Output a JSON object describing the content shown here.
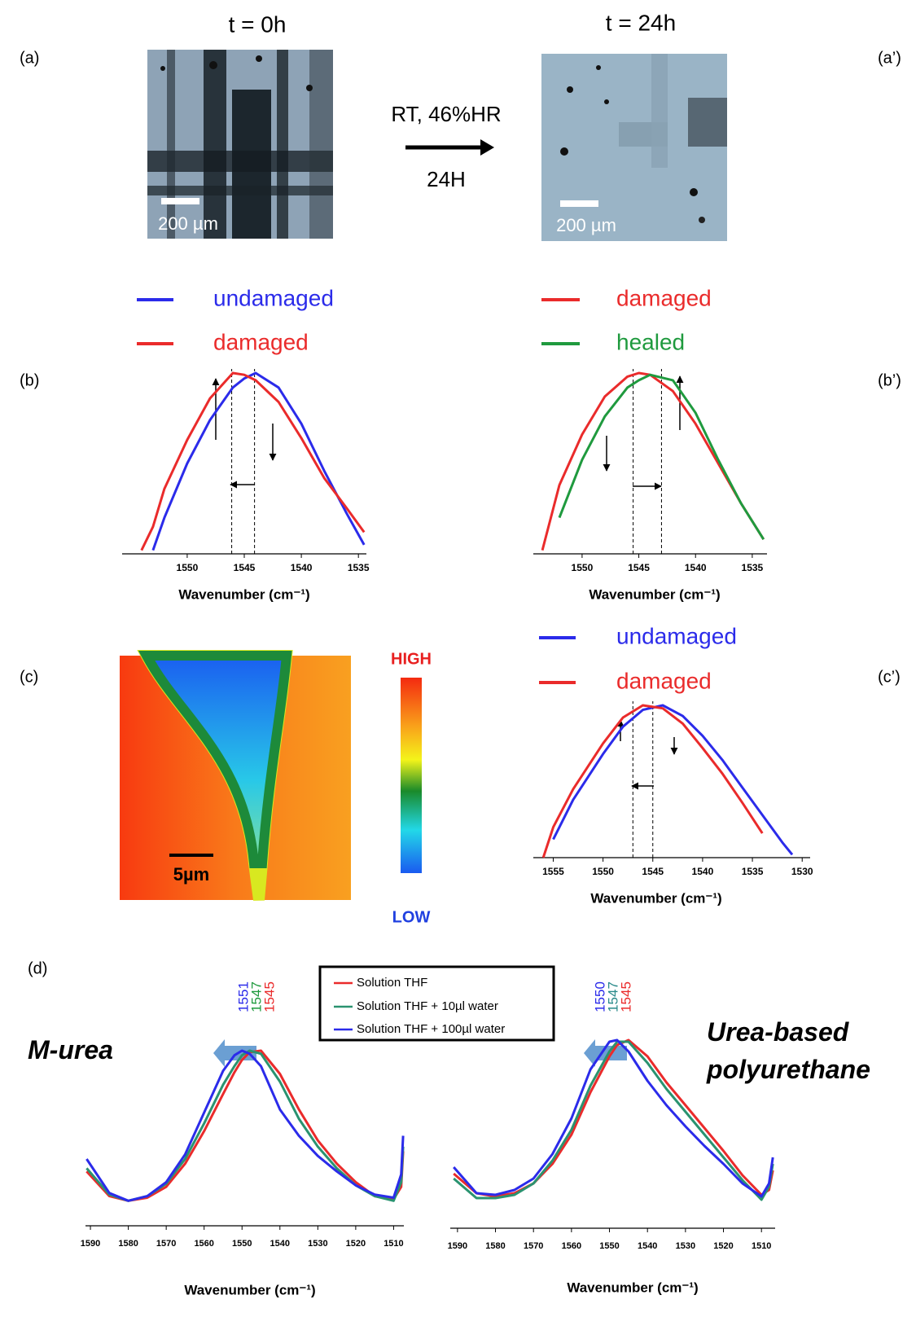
{
  "panel_labels": [
    "(a)",
    "(a’)",
    "(b)",
    "(b’)",
    "(c)",
    "(c’)",
    "(d)"
  ],
  "micrographs": [
    {
      "title": "t = 0h",
      "scale": "200 µm"
    },
    {
      "title": "t = 24h",
      "scale": "200 µm"
    }
  ],
  "treatment": {
    "condition": "RT, 46%HR",
    "duration": "24H"
  },
  "map": {
    "scale": "5µm",
    "high": "HIGH",
    "low": "LOW"
  },
  "chart_data": [
    {
      "type": "line",
      "xlabel": "Wavenumber (cm⁻¹)",
      "xlim": [
        1555.7,
        1534.3
      ],
      "ylim": [
        0,
        1
      ],
      "xticks": [
        1550,
        1545,
        1540,
        1535
      ],
      "vlines": [
        1546.1,
        1544.1
      ],
      "x": [
        1554,
        1553,
        1552,
        1550,
        1548,
        1546,
        1545,
        1544,
        1542,
        1540,
        1538,
        1536,
        1534.5
      ],
      "series": [
        {
          "name": "undamaged",
          "color": "#2b2bea",
          "values": [
            null,
            0.02,
            0.2,
            0.5,
            0.74,
            0.92,
            0.97,
            1.0,
            0.92,
            0.72,
            0.46,
            0.22,
            0.05
          ]
        },
        {
          "name": "damaged",
          "color": "#ea2b2b",
          "values": [
            0.02,
            0.15,
            0.36,
            0.63,
            0.86,
            1.0,
            0.99,
            0.96,
            0.84,
            0.64,
            0.42,
            0.25,
            0.12
          ]
        }
      ]
    },
    {
      "type": "line",
      "xlabel": "Wavenumber (cm⁻¹)",
      "xlim": [
        1554.3,
        1533.7
      ],
      "ylim": [
        0,
        1
      ],
      "xticks": [
        1550,
        1545,
        1540,
        1535
      ],
      "vlines": [
        1545.5,
        1543.0
      ],
      "x": [
        1553.5,
        1552,
        1550,
        1548,
        1546,
        1545,
        1544,
        1542,
        1540,
        1538,
        1536,
        1534
      ],
      "series": [
        {
          "name": "damaged",
          "color": "#ea2b2b",
          "values": [
            0.02,
            0.38,
            0.66,
            0.87,
            0.98,
            1.0,
            0.99,
            0.9,
            0.72,
            0.5,
            0.28,
            0.08
          ]
        },
        {
          "name": "healed",
          "color": "#1f9a3e",
          "values": [
            null,
            0.2,
            0.52,
            0.76,
            0.92,
            0.96,
            0.99,
            0.96,
            0.78,
            0.52,
            0.28,
            0.08
          ]
        }
      ]
    },
    {
      "type": "line",
      "xlabel": "Wavenumber (cm⁻¹)",
      "xlim": [
        1557.0,
        1529.2
      ],
      "ylim": [
        0,
        1
      ],
      "xticks": [
        1555,
        1550,
        1545,
        1540,
        1535,
        1530
      ],
      "vlines": [
        1547.0,
        1545.0
      ],
      "x": [
        1556,
        1555,
        1553,
        1550,
        1548,
        1546,
        1544,
        1542,
        1540,
        1538,
        1536,
        1534,
        1532,
        1531
      ],
      "series": [
        {
          "name": "undamaged",
          "color": "#2b2bea",
          "values": [
            null,
            0.12,
            0.38,
            0.68,
            0.86,
            0.97,
            1.0,
            0.93,
            0.8,
            0.64,
            0.46,
            0.28,
            0.1,
            0.02
          ]
        },
        {
          "name": "damaged",
          "color": "#ea2b2b",
          "values": [
            0.0,
            0.2,
            0.45,
            0.75,
            0.92,
            1.0,
            0.98,
            0.88,
            0.72,
            0.55,
            0.36,
            0.16,
            null,
            null
          ]
        }
      ]
    },
    {
      "type": "line",
      "title": "M-urea",
      "xlabel": "Wavenumber (cm⁻¹)",
      "xlim": [
        1591.3,
        1507.3
      ],
      "ylim": [
        0,
        1
      ],
      "xticks": [
        1590,
        1580,
        1570,
        1560,
        1550,
        1540,
        1530,
        1520,
        1510
      ],
      "peak_labels": [
        1551,
        1547,
        1545
      ],
      "peak_label_colors": [
        "#2b2bea",
        "#1f9a3e",
        "#ea2b2b"
      ],
      "x": [
        1591,
        1585,
        1580,
        1575,
        1570,
        1565,
        1560,
        1555,
        1552,
        1550,
        1548,
        1545,
        1540,
        1535,
        1530,
        1525,
        1520,
        1515,
        1510,
        1508,
        1507.5
      ],
      "series": [
        {
          "name": "Solution THF",
          "color": "#ea2b2b",
          "values": [
            0.22,
            0.06,
            0.03,
            0.05,
            0.12,
            0.27,
            0.48,
            0.72,
            0.86,
            0.94,
            0.99,
            1.0,
            0.85,
            0.62,
            0.42,
            0.27,
            0.15,
            0.06,
            0.04,
            0.12,
            0.35
          ]
        },
        {
          "name": "Solution THF + 10µl water",
          "color": "#2a9370",
          "values": [
            0.24,
            0.07,
            0.03,
            0.06,
            0.14,
            0.3,
            0.53,
            0.78,
            0.9,
            0.97,
            1.0,
            0.98,
            0.8,
            0.56,
            0.38,
            0.24,
            0.13,
            0.06,
            0.03,
            0.15,
            0.38
          ]
        },
        {
          "name": "Solution THF + 100µl water",
          "color": "#2b2bea",
          "values": [
            0.3,
            0.08,
            0.03,
            0.06,
            0.15,
            0.33,
            0.6,
            0.87,
            0.97,
            1.0,
            0.98,
            0.9,
            0.62,
            0.45,
            0.32,
            0.22,
            0.13,
            0.07,
            0.05,
            0.2,
            0.45
          ]
        }
      ]
    },
    {
      "type": "line",
      "title": "Urea-based polyurethane",
      "xlabel": "Wavenumber (cm⁻¹)",
      "xlim": [
        1591.9,
        1506.4
      ],
      "ylim": [
        0,
        1
      ],
      "xticks": [
        1590,
        1580,
        1570,
        1560,
        1550,
        1540,
        1530,
        1520,
        1510
      ],
      "peak_labels": [
        1550,
        1547,
        1545
      ],
      "peak_label_colors": [
        "#2b2bea",
        "#2a8a8a",
        "#ea2b2b"
      ],
      "x": [
        1591,
        1585,
        1580,
        1575,
        1570,
        1565,
        1560,
        1555,
        1550,
        1548,
        1545,
        1540,
        1535,
        1530,
        1525,
        1520,
        1515,
        1510,
        1508,
        1507
      ],
      "series": [
        {
          "color": "#ea2b2b",
          "values": [
            0.18,
            0.06,
            0.04,
            0.06,
            0.12,
            0.24,
            0.42,
            0.68,
            0.9,
            0.97,
            1.0,
            0.9,
            0.74,
            0.6,
            0.46,
            0.32,
            0.17,
            0.05,
            0.08,
            0.2
          ]
        },
        {
          "color": "#2a9370",
          "values": [
            0.15,
            0.03,
            0.03,
            0.05,
            0.12,
            0.26,
            0.45,
            0.72,
            0.93,
            0.99,
            0.99,
            0.86,
            0.7,
            0.56,
            0.42,
            0.28,
            0.14,
            0.02,
            0.1,
            0.24
          ]
        },
        {
          "color": "#2b2bea",
          "values": [
            0.22,
            0.06,
            0.05,
            0.08,
            0.15,
            0.3,
            0.52,
            0.82,
            0.99,
            1.0,
            0.93,
            0.75,
            0.6,
            0.47,
            0.35,
            0.24,
            0.12,
            0.04,
            0.12,
            0.28
          ]
        }
      ]
    }
  ]
}
